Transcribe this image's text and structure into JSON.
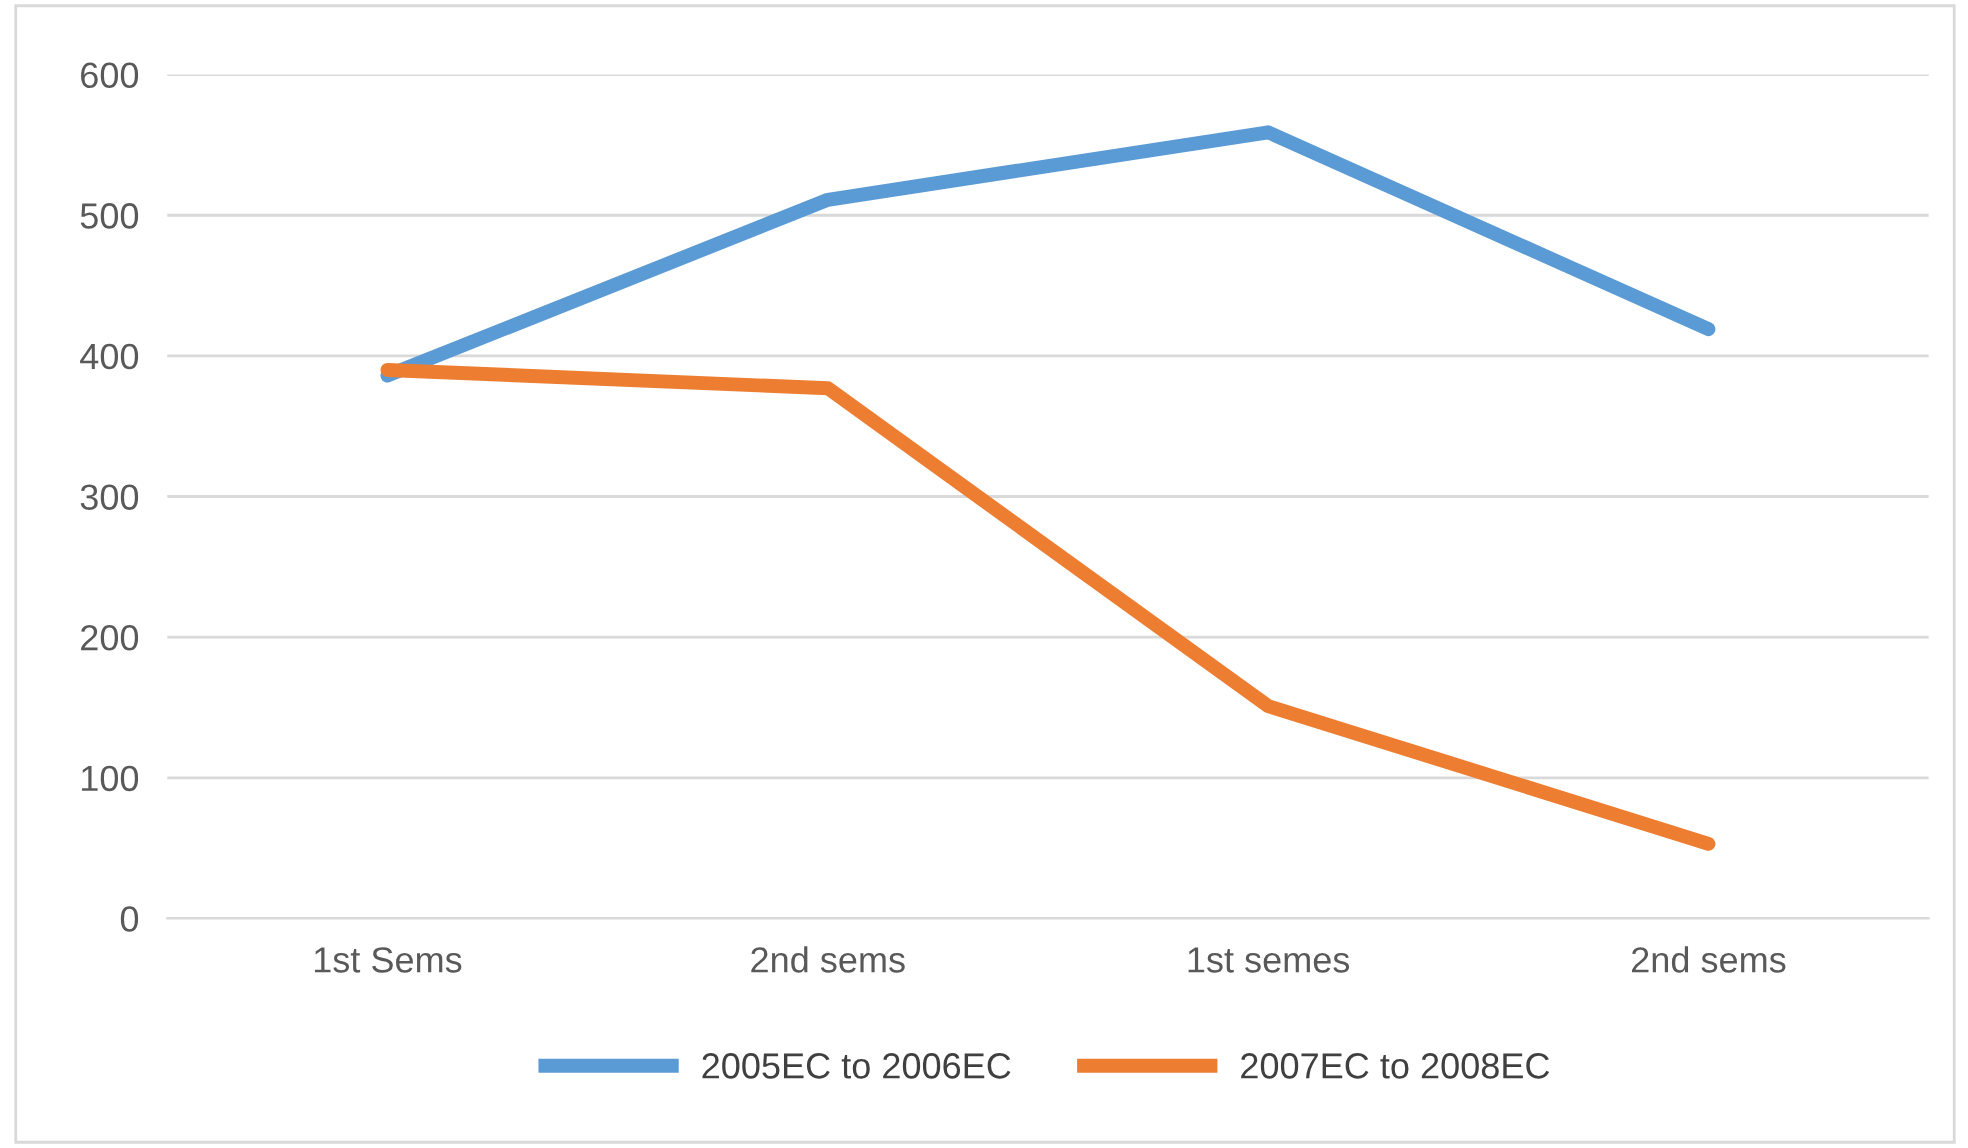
{
  "chart_data": {
    "type": "line",
    "categories": [
      "1st Sems",
      "2nd sems",
      "1st semes",
      "2nd sems"
    ],
    "series": [
      {
        "name": "2005EC to 2006EC",
        "color": "#5b9bd5",
        "values": [
          386,
          511,
          559,
          419
        ]
      },
      {
        "name": "2007EC to 2008EC",
        "color": "#ed7d31",
        "values": [
          390,
          377,
          151,
          53
        ]
      }
    ],
    "ylim": [
      0,
      600
    ],
    "yticks": [
      0,
      100,
      200,
      300,
      400,
      500,
      600
    ],
    "grid": "y",
    "legend": "bottom",
    "marker": "none",
    "line_style": "solid"
  }
}
